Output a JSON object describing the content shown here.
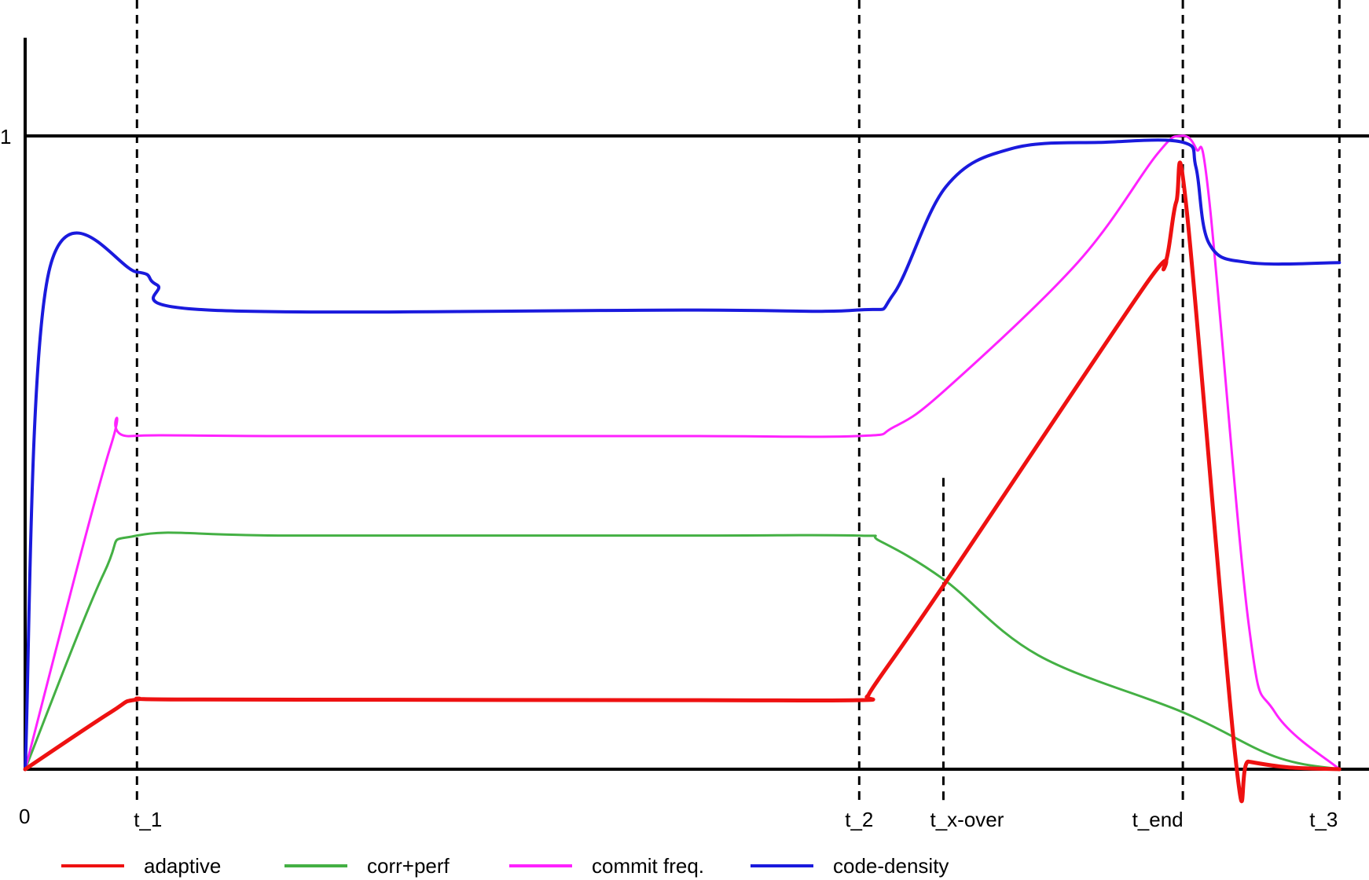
{
  "chart_data": {
    "type": "line",
    "title": "",
    "xlabel": "",
    "ylabel": "",
    "xlim": [
      0,
      1
    ],
    "ylim": [
      0,
      1.15
    ],
    "y_tick_labels": [
      {
        "value": 1,
        "label": "1"
      }
    ],
    "origin_label": "0",
    "x_markers": [
      {
        "name": "t_1",
        "x": 0.085,
        "label": "t_1",
        "y_top": 1.2
      },
      {
        "name": "t_2",
        "x": 0.634,
        "label": "t_2",
        "y_top": 1.2
      },
      {
        "name": "t_x-over",
        "x": 0.698,
        "label": "t_x-over",
        "y_top": 0.46
      },
      {
        "name": "t_end",
        "x": 0.88,
        "label": "t_end",
        "y_top": 1.2
      },
      {
        "name": "t_3",
        "x": 0.999,
        "label": "t_3",
        "y_top": 1.2
      }
    ],
    "grid": false,
    "legend_position": "bottom",
    "series": [
      {
        "name": "adaptive",
        "color": "#ee1111",
        "stroke_width": 5,
        "points": [
          [
            0,
            0
          ],
          [
            0.065,
            0.09
          ],
          [
            0.085,
            0.11
          ],
          [
            0.13,
            0.11
          ],
          [
            0.5,
            0.109
          ],
          [
            0.632,
            0.109
          ],
          [
            0.64,
            0.115
          ],
          [
            0.648,
            0.14
          ],
          [
            0.698,
            0.29
          ],
          [
            0.85,
            0.76
          ],
          [
            0.866,
            0.794
          ],
          [
            0.875,
            0.896
          ],
          [
            0.883,
            0.882
          ],
          [
            0.92,
            0.018
          ],
          [
            0.93,
            0.012
          ],
          [
            0.96,
            0.003
          ],
          [
            0.999,
            0
          ]
        ]
      },
      {
        "name": "corr+perf",
        "color": "#44b044",
        "stroke_width": 3,
        "points": [
          [
            0,
            0
          ],
          [
            0.06,
            0.31
          ],
          [
            0.085,
            0.369
          ],
          [
            0.2,
            0.369
          ],
          [
            0.5,
            0.369
          ],
          [
            0.632,
            0.369
          ],
          [
            0.65,
            0.36
          ],
          [
            0.698,
            0.3
          ],
          [
            0.77,
            0.18
          ],
          [
            0.88,
            0.09
          ],
          [
            0.95,
            0.02
          ],
          [
            0.999,
            0
          ]
        ]
      },
      {
        "name": "commit freq.",
        "color": "#ff22ff",
        "stroke_width": 3,
        "points": [
          [
            0,
            0
          ],
          [
            0.065,
            0.51
          ],
          [
            0.08,
            0.526
          ],
          [
            0.2,
            0.526
          ],
          [
            0.5,
            0.526
          ],
          [
            0.632,
            0.526
          ],
          [
            0.66,
            0.54
          ],
          [
            0.7,
            0.6
          ],
          [
            0.8,
            0.8
          ],
          [
            0.86,
            0.97
          ],
          [
            0.878,
            1.0
          ],
          [
            0.89,
            0.98
          ],
          [
            0.9,
            0.9
          ],
          [
            0.93,
            0.23
          ],
          [
            0.95,
            0.09
          ],
          [
            0.999,
            0
          ]
        ]
      },
      {
        "name": "code-density",
        "color": "#1a1add",
        "stroke_width": 4,
        "points": [
          [
            0,
            0
          ],
          [
            0.018,
            0.785
          ],
          [
            0.085,
            0.785
          ],
          [
            0.1,
            0.765
          ],
          [
            0.14,
            0.725
          ],
          [
            0.5,
            0.725
          ],
          [
            0.632,
            0.725
          ],
          [
            0.66,
            0.75
          ],
          [
            0.7,
            0.92
          ],
          [
            0.75,
            0.98
          ],
          [
            0.82,
            0.99
          ],
          [
            0.88,
            0.99
          ],
          [
            0.89,
            0.95
          ],
          [
            0.9,
            0.83
          ],
          [
            0.93,
            0.8
          ],
          [
            0.999,
            0.8
          ]
        ]
      }
    ]
  },
  "legend": {
    "items": [
      {
        "label": "adaptive",
        "color": "#ee1111"
      },
      {
        "label": "corr+perf",
        "color": "#44b044"
      },
      {
        "label": "commit freq.",
        "color": "#ff22ff"
      },
      {
        "label": "code-density",
        "color": "#1a1add"
      }
    ]
  }
}
